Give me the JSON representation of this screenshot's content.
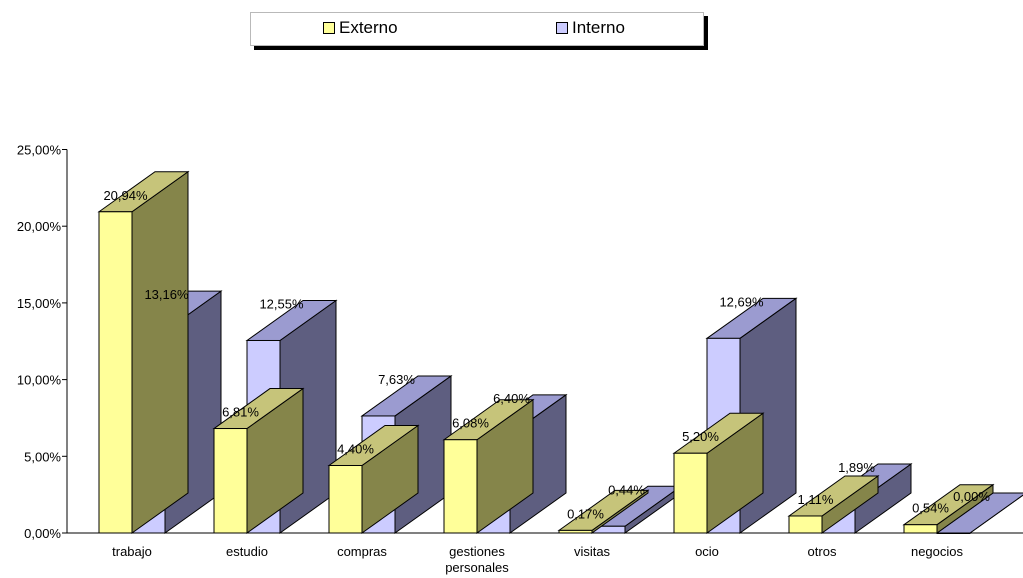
{
  "legend": {
    "externo": "Externo",
    "interno": "Interno"
  },
  "colors": {
    "externo_front": "#ffff99",
    "externo_top": "#c6c47a",
    "externo_side": "#85854a",
    "interno_front": "#ccccff",
    "interno_top": "#9b9bd0",
    "interno_side": "#5e5e80"
  },
  "chart_data": {
    "type": "bar",
    "style": "3d-clustered",
    "categories": [
      "trabajo",
      "estudio",
      "compras",
      "gestiones personales",
      "visitas",
      "ocio",
      "otros",
      "negocios"
    ],
    "series": [
      {
        "name": "Externo",
        "values": [
          20.94,
          6.81,
          4.4,
          6.08,
          0.17,
          5.2,
          1.11,
          0.54
        ],
        "labels": [
          "20,94%",
          "6,81%",
          "4,40%",
          "6,08%",
          "0,17%",
          "5,20%",
          "1,11%",
          "0,54%"
        ]
      },
      {
        "name": "Interno",
        "values": [
          13.16,
          12.55,
          7.63,
          6.4,
          0.44,
          12.69,
          1.89,
          0.0
        ],
        "labels": [
          "13,16%",
          "12,55%",
          "7,63%",
          "6,40%",
          "0,44%",
          "12,69%",
          "1,89%",
          "0,00%"
        ]
      }
    ],
    "y_ticks": [
      0,
      5,
      10,
      15,
      20,
      25
    ],
    "y_tick_labels": [
      "0,00%",
      "5,00%",
      "10,00%",
      "15,00%",
      "20,00%",
      "25,00%"
    ],
    "ylim": [
      0,
      25
    ],
    "legend_position": "top",
    "grid": false
  }
}
